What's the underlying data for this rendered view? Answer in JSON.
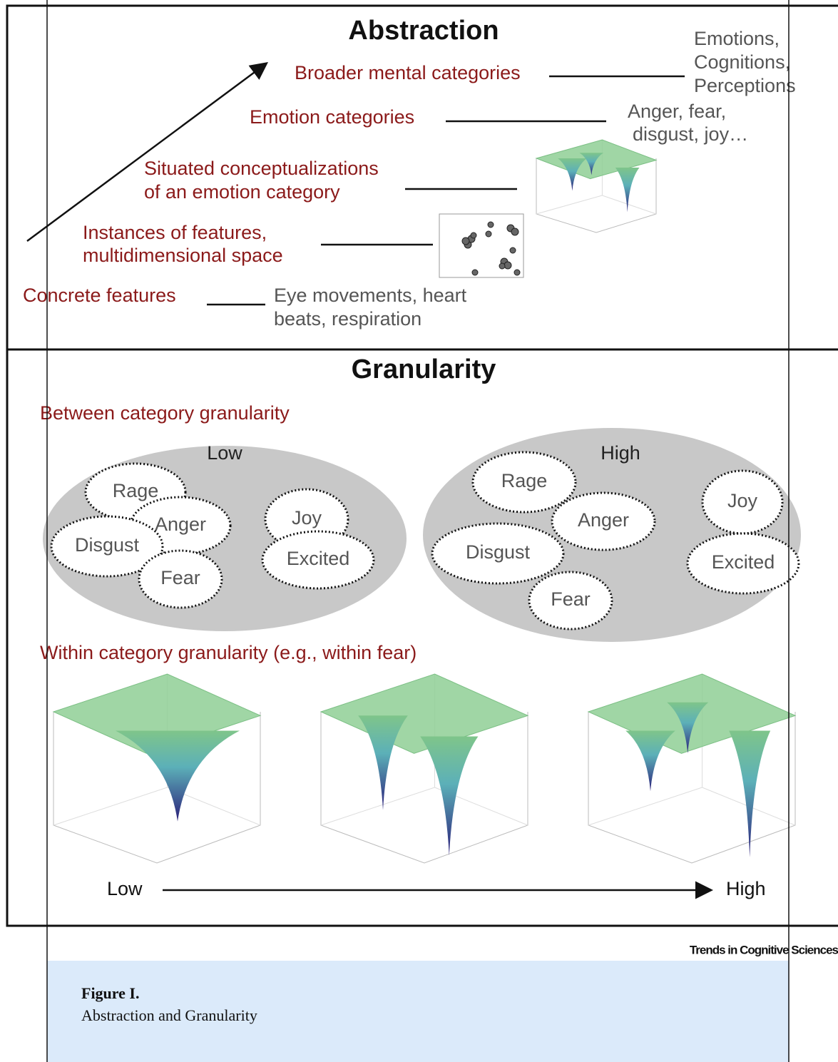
{
  "abstraction": {
    "title": "Abstraction",
    "levels": [
      {
        "label": [
          "Broader mental categories"
        ],
        "examples": [
          "Emotions,",
          "Cognitions,",
          "Perceptions"
        ]
      },
      {
        "label": [
          "Emotion categories"
        ],
        "examples": [
          "Anger, fear,",
          "disgust, joy…"
        ]
      },
      {
        "label": [
          "Situated conceptualizations",
          "of an emotion category"
        ]
      },
      {
        "label": [
          "Instances of features,",
          "multidimensional space"
        ]
      },
      {
        "label": [
          "Concrete features"
        ],
        "examples": [
          "Eye movements, heart",
          "beats, respiration"
        ]
      }
    ]
  },
  "granularity": {
    "title": "Granularity",
    "between_title": "Between category granularity",
    "low": {
      "label": "Low",
      "categories": [
        "Rage",
        "Anger",
        "Disgust",
        "Fear",
        "Joy",
        "Excited"
      ]
    },
    "high": {
      "label": "High",
      "categories": [
        "Rage",
        "Anger",
        "Disgust",
        "Fear",
        "Joy",
        "Excited"
      ]
    },
    "within_title": "Within category granularity (e.g., within fear)",
    "axis_low": "Low",
    "axis_high": "High"
  },
  "source": "Trends in Cognitive Sciences",
  "caption": {
    "label": "Figure I.",
    "title": "Abstraction and Granularity"
  }
}
